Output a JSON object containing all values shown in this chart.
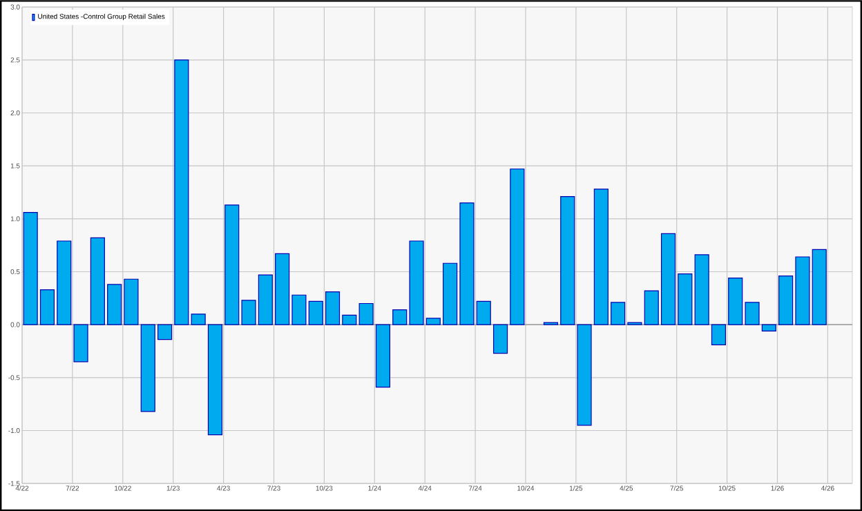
{
  "chart_data": {
    "type": "bar",
    "x": [
      "2022-04-16",
      "2022-05-16",
      "2022-06-16",
      "2022-07-16",
      "2022-08-16",
      "2022-09-16",
      "2022-10-16",
      "2022-11-16",
      "2022-12-16",
      "2023-01-16",
      "2023-02-16",
      "2023-03-16",
      "2023-04-16",
      "2023-05-16",
      "2023-06-16",
      "2023-07-16",
      "2023-08-16",
      "2023-09-16",
      "2023-10-16",
      "2023-11-16",
      "2023-12-16",
      "2024-01-16",
      "2024-02-16",
      "2024-03-16",
      "2024-04-16",
      "2024-05-16",
      "2024-06-16",
      "2024-07-16",
      "2024-08-16",
      "2024-09-16",
      "2024-10-16",
      "2024-11-16",
      "2024-12-16",
      "2025-01-16",
      "2025-02-16",
      "2025-03-16",
      "2025-04-16",
      "2025-05-16",
      "2025-06-16",
      "2025-07-16",
      "2025-08-16",
      "2025-09-16",
      "2025-10-16",
      "2025-11-16",
      "2025-12-16",
      "2026-01-16",
      "2026-02-16",
      "2026-03-16"
    ],
    "series": [
      {
        "name": "United States -Control Group Retail Sales",
        "color": "#00aaee",
        "values": [
          1.06,
          0.33,
          0.79,
          -0.35,
          0.82,
          0.38,
          0.43,
          -0.82,
          -0.14,
          2.5,
          0.1,
          -1.04,
          1.13,
          0.23,
          0.47,
          0.67,
          0.28,
          0.22,
          0.31,
          0.09,
          0.2,
          -0.59,
          0.14,
          0.79,
          0.06,
          0.58,
          1.15,
          0.22,
          -0.27,
          1.47,
          null,
          0.02,
          1.21,
          -0.95,
          1.28,
          0.21,
          0.02,
          0.32,
          0.86,
          0.48,
          0.66,
          -0.19,
          0.44,
          0.21,
          -0.06,
          0.46,
          0.64,
          0.71
        ]
      }
    ],
    "xlim": [
      "2022-04",
      "2026-05-15"
    ],
    "xticks": [
      {
        "value": "2022-04",
        "label": "4/22"
      },
      {
        "value": "2022-07",
        "label": "7/22"
      },
      {
        "value": "2022-10",
        "label": "10/22"
      },
      {
        "value": "2023-01",
        "label": "1/23"
      },
      {
        "value": "2023-04",
        "label": "4/23"
      },
      {
        "value": "2023-07",
        "label": "7/23"
      },
      {
        "value": "2023-10",
        "label": "10/23"
      },
      {
        "value": "2024-01",
        "label": "1/24"
      },
      {
        "value": "2024-04",
        "label": "4/24"
      },
      {
        "value": "2024-07",
        "label": "7/24"
      },
      {
        "value": "2024-10",
        "label": "10/24"
      },
      {
        "value": "2025-01",
        "label": "1/25"
      },
      {
        "value": "2025-04",
        "label": "4/25"
      },
      {
        "value": "2025-07",
        "label": "7/25"
      },
      {
        "value": "2025-10",
        "label": "10/25"
      },
      {
        "value": "2026-01",
        "label": "1/26"
      },
      {
        "value": "2026-04",
        "label": "4/26"
      }
    ],
    "ylim": [
      -1.5,
      3.0
    ],
    "yticks": [
      {
        "value": -1.5,
        "label": "-1.5"
      },
      {
        "value": -1.0,
        "label": "-1.0"
      },
      {
        "value": -0.5,
        "label": "-0.5"
      },
      {
        "value": 0.0,
        "label": "0.0"
      },
      {
        "value": 0.5,
        "label": "0.5"
      },
      {
        "value": 1.0,
        "label": "1.0"
      },
      {
        "value": 1.5,
        "label": "1.5"
      },
      {
        "value": 2.0,
        "label": "2.0"
      },
      {
        "value": 2.5,
        "label": "2.5"
      },
      {
        "value": 3.0,
        "label": "3.0"
      }
    ],
    "grid": true,
    "legend": "top left"
  }
}
